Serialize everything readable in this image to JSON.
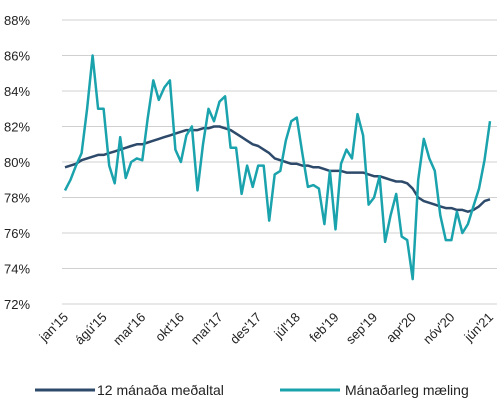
{
  "chart_data": {
    "type": "line",
    "categories": [
      "jan'15",
      null,
      null,
      null,
      null,
      null,
      null,
      "ágú'15",
      null,
      null,
      null,
      null,
      null,
      null,
      "mar'16",
      null,
      null,
      null,
      null,
      null,
      null,
      "okt'16",
      null,
      null,
      null,
      null,
      null,
      null,
      "maí'17",
      null,
      null,
      null,
      null,
      null,
      null,
      "des'17",
      null,
      null,
      null,
      null,
      null,
      null,
      "júl'18",
      null,
      null,
      null,
      null,
      null,
      null,
      "feb'19",
      null,
      null,
      null,
      null,
      null,
      null,
      "sep'19",
      null,
      null,
      null,
      null,
      null,
      null,
      "apr'20",
      null,
      null,
      null,
      null,
      null,
      null,
      "nóv'20",
      null,
      null,
      null,
      null,
      null,
      null,
      "jún'21"
    ],
    "series": [
      {
        "name": "12 mánaða meðaltal",
        "color": "#2e4a6b",
        "values": [
          79.7,
          79.8,
          79.9,
          80.1,
          80.2,
          80.3,
          80.4,
          80.4,
          80.5,
          80.6,
          80.7,
          80.8,
          80.9,
          81.0,
          81.0,
          81.1,
          81.2,
          81.3,
          81.4,
          81.5,
          81.6,
          81.7,
          81.8,
          81.8,
          81.8,
          81.9,
          81.9,
          82.0,
          82.0,
          81.9,
          81.8,
          81.6,
          81.4,
          81.2,
          81.0,
          80.9,
          80.7,
          80.5,
          80.2,
          80.1,
          80.0,
          79.9,
          79.9,
          79.8,
          79.8,
          79.7,
          79.7,
          79.6,
          79.5,
          79.5,
          79.5,
          79.4,
          79.4,
          79.4,
          79.4,
          79.3,
          79.2,
          79.2,
          79.1,
          79.0,
          78.9,
          78.9,
          78.8,
          78.5,
          78.0,
          77.8,
          77.7,
          77.6,
          77.5,
          77.4,
          77.4,
          77.3,
          77.3,
          77.2,
          77.3,
          77.5,
          77.8,
          77.9
        ]
      },
      {
        "name": "Mánaðarleg mæling",
        "color": "#1aa3ad",
        "values": [
          78.4,
          79.0,
          79.8,
          80.5,
          83.0,
          86.0,
          83.0,
          83.0,
          79.8,
          78.8,
          81.4,
          79.1,
          80.0,
          80.2,
          80.1,
          82.5,
          84.6,
          83.5,
          84.2,
          84.6,
          80.7,
          80.0,
          81.5,
          82.0,
          78.4,
          81.0,
          83.0,
          82.3,
          83.4,
          83.7,
          80.8,
          80.8,
          78.2,
          79.8,
          78.6,
          79.8,
          79.8,
          76.7,
          79.3,
          79.5,
          81.2,
          82.3,
          82.5,
          80.5,
          78.6,
          78.7,
          78.5,
          76.5,
          79.5,
          76.2,
          79.9,
          80.7,
          80.2,
          82.7,
          81.5,
          77.6,
          78.0,
          79.2,
          75.5,
          77.0,
          78.2,
          75.8,
          75.6,
          73.4,
          79.0,
          81.3,
          80.2,
          79.5,
          77.0,
          75.6,
          75.6,
          77.2,
          76.0,
          76.5,
          77.5,
          78.5,
          80.1,
          82.3
        ]
      }
    ],
    "ylim": [
      72,
      88
    ],
    "yticks": [
      {
        "value": 72,
        "label": "72%"
      },
      {
        "value": 74,
        "label": "74%"
      },
      {
        "value": 76,
        "label": "76%"
      },
      {
        "value": 78,
        "label": "78%"
      },
      {
        "value": 80,
        "label": "80%"
      },
      {
        "value": 82,
        "label": "82%"
      },
      {
        "value": 84,
        "label": "84%"
      },
      {
        "value": 86,
        "label": "86%"
      },
      {
        "value": 88,
        "label": "88%"
      }
    ],
    "grid": true
  }
}
